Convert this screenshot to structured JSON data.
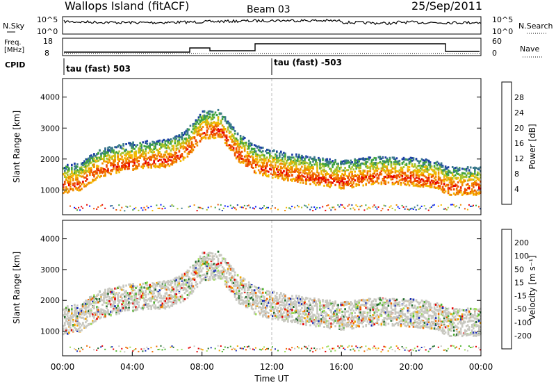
{
  "header": {
    "station": "Wallops Island (fitACF)",
    "beam": "Beam 03",
    "date": "25/Sep/2011"
  },
  "top_strip": {
    "nsky_label": "N.Sky",
    "nsky_ticks": [
      "10^5",
      "10^0"
    ],
    "nsearch_label": "N.Search",
    "nsearch_ticks": [
      "10^5",
      "10^0"
    ],
    "freq_label_1": "Freq.",
    "freq_label_2": "[MHz]",
    "freq_ticks": [
      "18",
      "8"
    ],
    "nave_label": "Nave",
    "nave_ticks": [
      "60",
      "0"
    ],
    "cpid_label": "CPID",
    "cpid_1": "tau (fast) 503",
    "cpid_2": "tau (fast) -503"
  },
  "chart_data": [
    {
      "type": "heatmap",
      "panel": "power",
      "ylabel": "Slant Range [km]",
      "yticks": [
        "1000",
        "2000",
        "3000",
        "4000"
      ],
      "ylim": [
        200,
        4600
      ],
      "xlabel": "Time UT",
      "xticks": [
        "00:00",
        "04:00",
        "08:00",
        "12:00",
        "16:00",
        "20:00",
        "00:00"
      ],
      "colorbar_label": "Power [dB]",
      "colorbar_ticks": [
        "28",
        "24",
        "20",
        "16",
        "12",
        "8",
        "4"
      ],
      "colorscale": [
        "#0016ff",
        "#1b3ea5",
        "#3b7a8c",
        "#3fa33f",
        "#a8c32b",
        "#f5b800",
        "#f08a00",
        "#ee4f00",
        "#e60000"
      ],
      "echo_trace_km": [
        [
          0,
          1150
        ],
        [
          1,
          1250
        ],
        [
          2,
          1650
        ],
        [
          3,
          1800
        ],
        [
          4,
          1900
        ],
        [
          6,
          2000
        ],
        [
          7,
          2250
        ],
        [
          8,
          2900
        ],
        [
          9,
          2950
        ],
        [
          10,
          2200
        ],
        [
          11,
          1800
        ],
        [
          12,
          1650
        ],
        [
          14,
          1450
        ],
        [
          16,
          1300
        ],
        [
          18,
          1450
        ],
        [
          20,
          1400
        ],
        [
          21.5,
          1300
        ],
        [
          22,
          1100
        ],
        [
          24,
          1100
        ]
      ]
    },
    {
      "type": "heatmap",
      "panel": "velocity",
      "ylabel": "Slant Range [km]",
      "yticks": [
        "1000",
        "2000",
        "3000",
        "4000"
      ],
      "ylim": [
        200,
        4600
      ],
      "xlabel": "Time UT",
      "xticks": [
        "00:00",
        "04:00",
        "08:00",
        "12:00",
        "16:00",
        "20:00",
        "00:00"
      ],
      "colorbar_label": "Velocity [m s⁻¹]",
      "colorbar_ticks": [
        "200",
        "100",
        "50",
        "15",
        "-15",
        "-50",
        "-100",
        "-200"
      ],
      "colorscale": [
        "#1b2fb8",
        "#1f6b2a",
        "#4fb32f",
        "#9fdc5a",
        "#c8c8c0",
        "#f2a300",
        "#ee6a00",
        "#e60000"
      ]
    }
  ]
}
